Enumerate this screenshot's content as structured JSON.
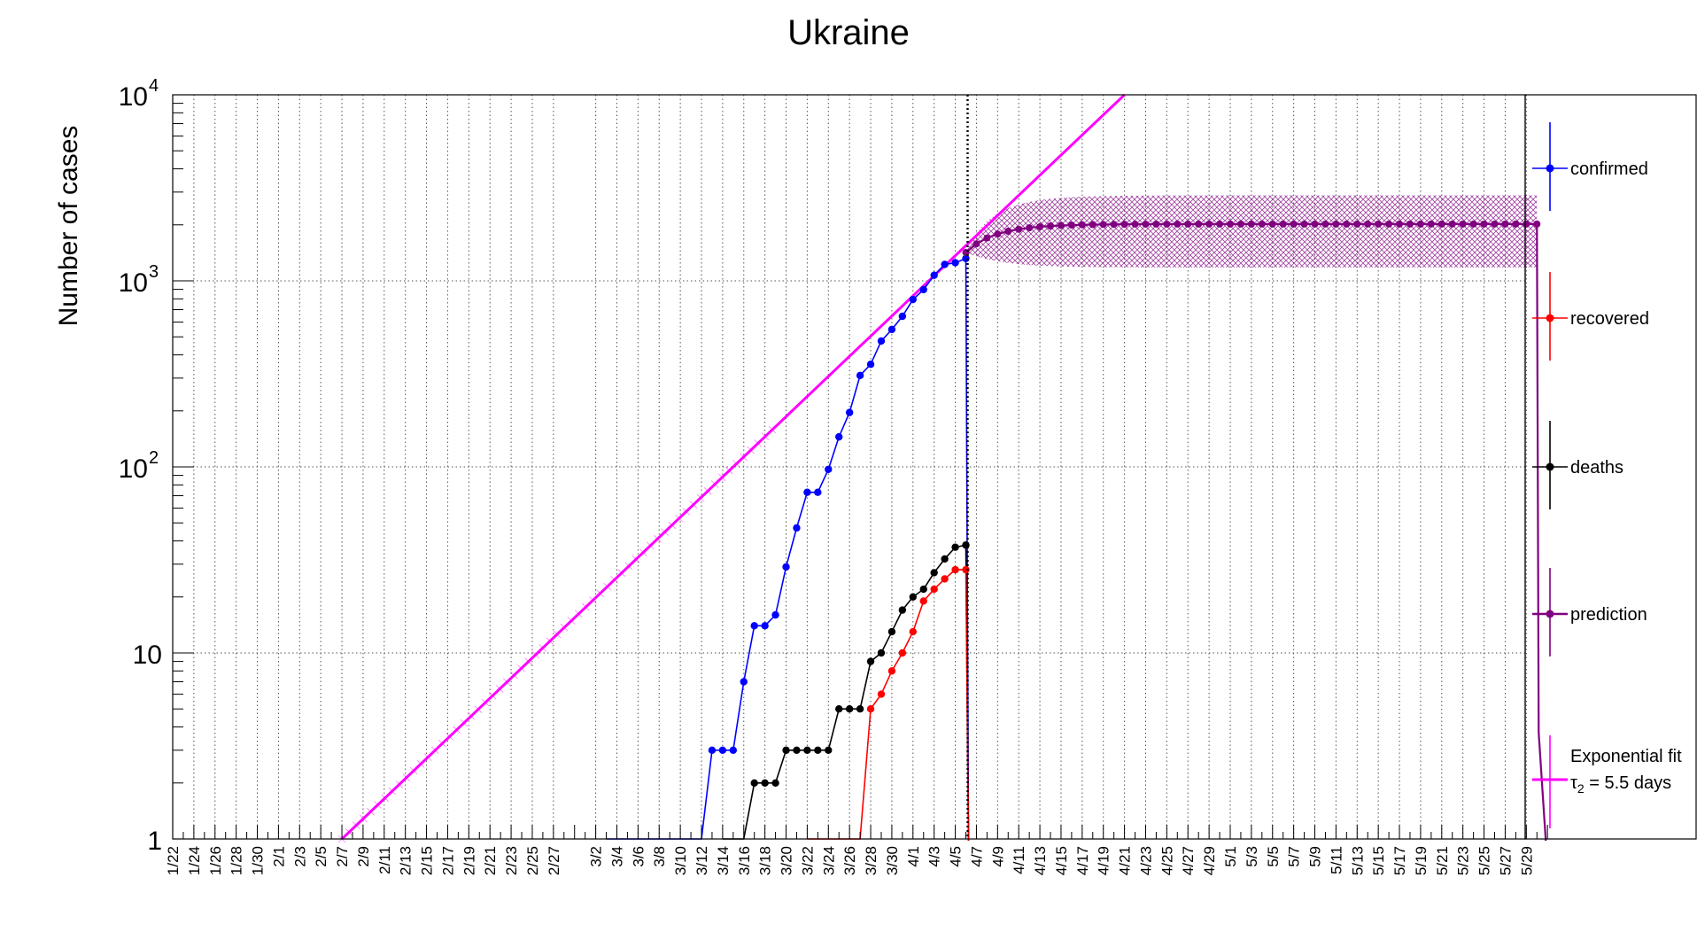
{
  "chart_data": {
    "type": "line",
    "title": "Ukraine",
    "ylabel": "Number of cases",
    "yscale": "log",
    "ylim": [
      1,
      10000
    ],
    "grid": true,
    "legend_position": "right",
    "ytick_labels": [
      {
        "value": 1,
        "base": "1",
        "exp": ""
      },
      {
        "value": 10,
        "base": "10",
        "exp": ""
      },
      {
        "value": 100,
        "base": "10",
        "exp": "2"
      },
      {
        "value": 1000,
        "base": "10",
        "exp": "3"
      },
      {
        "value": 10000,
        "base": "10",
        "exp": "4"
      }
    ],
    "x_labels": [
      "1/22",
      "1/24",
      "1/26",
      "1/28",
      "1/30",
      "2/1",
      "2/3",
      "2/5",
      "2/7",
      "2/9",
      "2/11",
      "2/13",
      "2/15",
      "2/17",
      "2/19",
      "2/21",
      "2/23",
      "2/25",
      "2/27",
      "3/2",
      "3/4",
      "3/6",
      "3/8",
      "3/10",
      "3/12",
      "3/14",
      "3/16",
      "3/18",
      "3/20",
      "3/22",
      "3/24",
      "3/26",
      "3/28",
      "3/30",
      "4/1",
      "4/3",
      "4/5",
      "4/7",
      "4/9",
      "4/11",
      "4/13",
      "4/15",
      "4/17",
      "4/19",
      "4/21",
      "4/23",
      "4/25",
      "4/27",
      "4/29",
      "5/1",
      "5/3",
      "5/5",
      "5/7",
      "5/9",
      "5/11",
      "5/13",
      "5/15",
      "5/17",
      "5/19",
      "5/21",
      "5/23",
      "5/25",
      "5/27",
      "5/29"
    ],
    "current_date_marker": "4/6",
    "series": [
      {
        "name": "confirmed",
        "color": "#0000ff",
        "points": [
          [
            "3/3",
            1
          ],
          [
            "3/4",
            1
          ],
          [
            "3/5",
            1
          ],
          [
            "3/6",
            1
          ],
          [
            "3/7",
            1
          ],
          [
            "3/8",
            1
          ],
          [
            "3/9",
            1
          ],
          [
            "3/10",
            1
          ],
          [
            "3/11",
            1
          ],
          [
            "3/12",
            1
          ],
          [
            "3/13",
            3
          ],
          [
            "3/14",
            3
          ],
          [
            "3/15",
            3
          ],
          [
            "3/16",
            7
          ],
          [
            "3/17",
            14
          ],
          [
            "3/18",
            14
          ],
          [
            "3/19",
            16
          ],
          [
            "3/20",
            29
          ],
          [
            "3/21",
            47
          ],
          [
            "3/22",
            73
          ],
          [
            "3/23",
            73
          ],
          [
            "3/24",
            97
          ],
          [
            "3/25",
            145
          ],
          [
            "3/26",
            196
          ],
          [
            "3/27",
            310
          ],
          [
            "3/28",
            356
          ],
          [
            "3/29",
            475
          ],
          [
            "3/30",
            548
          ],
          [
            "3/31",
            645
          ],
          [
            "4/1",
            794
          ],
          [
            "4/2",
            897
          ],
          [
            "4/3",
            1072
          ],
          [
            "4/4",
            1225
          ],
          [
            "4/5",
            1251
          ],
          [
            "4/6",
            1319
          ]
        ]
      },
      {
        "name": "recovered",
        "color": "#ff0000",
        "points": [
          [
            "3/22",
            1
          ],
          [
            "3/23",
            1
          ],
          [
            "3/24",
            1
          ],
          [
            "3/25",
            1
          ],
          [
            "3/26",
            1
          ],
          [
            "3/27",
            1
          ],
          [
            "3/28",
            5
          ],
          [
            "3/29",
            6
          ],
          [
            "3/30",
            8
          ],
          [
            "3/31",
            10
          ],
          [
            "4/1",
            13
          ],
          [
            "4/2",
            19
          ],
          [
            "4/3",
            22
          ],
          [
            "4/4",
            25
          ],
          [
            "4/5",
            28
          ],
          [
            "4/6",
            28
          ]
        ]
      },
      {
        "name": "deaths",
        "color": "#000000",
        "points": [
          [
            "3/14",
            1
          ],
          [
            "3/15",
            1
          ],
          [
            "3/16",
            1
          ],
          [
            "3/17",
            2
          ],
          [
            "3/18",
            2
          ],
          [
            "3/19",
            2
          ],
          [
            "3/20",
            3
          ],
          [
            "3/21",
            3
          ],
          [
            "3/22",
            3
          ],
          [
            "3/23",
            3
          ],
          [
            "3/24",
            3
          ],
          [
            "3/25",
            5
          ],
          [
            "3/26",
            5
          ],
          [
            "3/27",
            5
          ],
          [
            "3/28",
            9
          ],
          [
            "3/29",
            10
          ],
          [
            "3/30",
            13
          ],
          [
            "3/31",
            17
          ],
          [
            "4/1",
            20
          ],
          [
            "4/2",
            22
          ],
          [
            "4/3",
            27
          ],
          [
            "4/4",
            32
          ],
          [
            "4/5",
            37
          ],
          [
            "4/6",
            38
          ]
        ]
      },
      {
        "name": "prediction",
        "color": "#800080",
        "start": "4/6",
        "end": "5/30",
        "start_value": 1420,
        "plateau_value": 2020,
        "band_low": 1180,
        "band_high": 2880
      },
      {
        "name": "Exponential fit",
        "name_line2": "τ",
        "name_sub": "2",
        "name_rest": " = 5.5 days",
        "color": "#ff00ff",
        "doubling_time_days": 5.5,
        "points": [
          [
            "2/7",
            1
          ],
          [
            "4/21",
            10000
          ]
        ]
      }
    ]
  }
}
